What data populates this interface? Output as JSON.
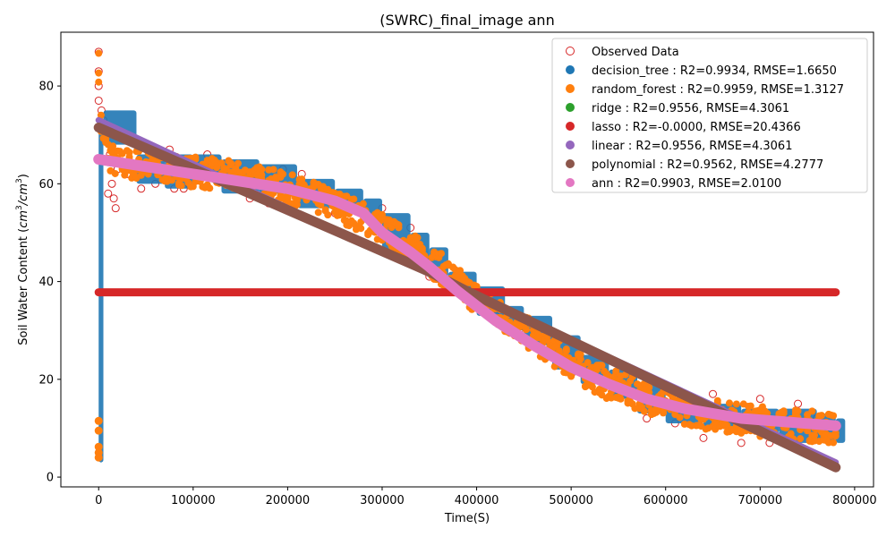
{
  "chart_data": {
    "type": "scatter",
    "title": "(SWRC)_final_image ann",
    "xlabel": "Time(S)",
    "ylabel_main": "Soil Water Content (",
    "ylabel_unit1": "cm",
    "ylabel_sup1": "3",
    "ylabel_slash": "/",
    "ylabel_unit2": "cm",
    "ylabel_sup2": "3",
    "ylabel_close": ")",
    "xlim": [
      -40000,
      820000
    ],
    "ylim": [
      -2,
      91
    ],
    "x_ticks": [
      0,
      100000,
      200000,
      300000,
      400000,
      500000,
      600000,
      700000,
      800000
    ],
    "x_tick_labels": [
      "0",
      "100000",
      "200000",
      "300000",
      "400000",
      "500000",
      "600000",
      "700000",
      "800000"
    ],
    "y_ticks": [
      0,
      20,
      40,
      60,
      80
    ],
    "y_tick_labels": [
      "0",
      "20",
      "40",
      "60",
      "80"
    ],
    "grid": false,
    "legend_position": "top-right",
    "observed": {
      "name": "Observed Data",
      "color": "#d62728",
      "marker": "hollow-circle",
      "points": [
        [
          0,
          87
        ],
        [
          0,
          83
        ],
        [
          0,
          80
        ],
        [
          0,
          77
        ],
        [
          3000,
          75
        ],
        [
          5000,
          73
        ],
        [
          8000,
          70
        ],
        [
          12000,
          66
        ],
        [
          14000,
          60
        ],
        [
          16000,
          57
        ],
        [
          18000,
          55
        ],
        [
          10000,
          58
        ],
        [
          20000,
          63
        ],
        [
          30000,
          62
        ],
        [
          45000,
          59
        ],
        [
          60000,
          60
        ],
        [
          75000,
          67
        ],
        [
          80000,
          59
        ],
        [
          90000,
          59
        ],
        [
          115000,
          66
        ],
        [
          140000,
          61
        ],
        [
          160000,
          57
        ],
        [
          180000,
          56
        ],
        [
          195000,
          63
        ],
        [
          215000,
          62
        ],
        [
          250000,
          54
        ],
        [
          300000,
          55
        ],
        [
          330000,
          51
        ],
        [
          350000,
          41
        ],
        [
          380000,
          38
        ],
        [
          420000,
          33
        ],
        [
          445000,
          30
        ],
        [
          480000,
          25
        ],
        [
          500000,
          21
        ],
        [
          520000,
          19
        ],
        [
          545000,
          17
        ],
        [
          580000,
          12
        ],
        [
          610000,
          11
        ],
        [
          640000,
          8
        ],
        [
          650000,
          17
        ],
        [
          680000,
          7
        ],
        [
          690000,
          13
        ],
        [
          700000,
          16
        ],
        [
          710000,
          7
        ],
        [
          740000,
          15
        ],
        [
          760000,
          12
        ],
        [
          775000,
          9
        ]
      ]
    },
    "series": [
      {
        "name": "decision_tree",
        "r2": "0.9934",
        "rmse": "1.6650",
        "color": "#1f77b4",
        "kind": "steps",
        "segments": [
          [
            0,
            3,
            73
          ],
          [
            5000,
            68,
            75
          ],
          [
            40000,
            60,
            66
          ],
          [
            70000,
            59,
            66
          ],
          [
            100000,
            61,
            66
          ],
          [
            130000,
            58,
            65
          ],
          [
            170000,
            58,
            64
          ],
          [
            210000,
            55,
            61
          ],
          [
            250000,
            54,
            59
          ],
          [
            280000,
            52,
            57
          ],
          [
            300000,
            46,
            54
          ],
          [
            330000,
            43,
            50
          ],
          [
            350000,
            41,
            47
          ],
          [
            370000,
            37,
            42
          ],
          [
            400000,
            33,
            39
          ],
          [
            430000,
            30,
            35
          ],
          [
            450000,
            27,
            33
          ],
          [
            480000,
            22,
            29
          ],
          [
            510000,
            19,
            25
          ],
          [
            540000,
            16,
            22
          ],
          [
            570000,
            13,
            19
          ],
          [
            600000,
            11,
            15
          ],
          [
            640000,
            10,
            15
          ],
          [
            680000,
            9,
            14
          ],
          [
            720000,
            7,
            14
          ],
          [
            760000,
            7,
            13
          ],
          [
            780000,
            7,
            12
          ]
        ]
      },
      {
        "name": "random_forest",
        "r2": "0.9959",
        "rmse": "1.3127",
        "color": "#ff7f0e",
        "kind": "band",
        "points": [
          [
            0,
            84
          ],
          [
            0,
            63
          ],
          [
            2000,
            73
          ],
          [
            10000,
            66
          ],
          [
            20000,
            64
          ],
          [
            40000,
            64
          ],
          [
            80000,
            63
          ],
          [
            120000,
            62
          ],
          [
            160000,
            61
          ],
          [
            200000,
            59
          ],
          [
            230000,
            57
          ],
          [
            260000,
            55
          ],
          [
            280000,
            53
          ],
          [
            300000,
            51
          ],
          [
            330000,
            47
          ],
          [
            360000,
            43
          ],
          [
            390000,
            38
          ],
          [
            420000,
            34
          ],
          [
            450000,
            30
          ],
          [
            480000,
            26
          ],
          [
            510000,
            22
          ],
          [
            540000,
            19
          ],
          [
            570000,
            17
          ],
          [
            600000,
            15
          ],
          [
            640000,
            13
          ],
          [
            680000,
            12
          ],
          [
            720000,
            11
          ],
          [
            780000,
            10
          ]
        ],
        "band": 3.2,
        "outliers": [
          [
            0,
            11.5
          ],
          [
            0,
            9.5
          ],
          [
            0,
            6.2
          ],
          [
            0,
            5
          ],
          [
            0,
            4
          ]
        ]
      },
      {
        "name": "ridge",
        "r2": "0.9556",
        "rmse": "4.3061",
        "color": "#2ca02c",
        "kind": "line",
        "points": [
          [
            0,
            73
          ],
          [
            780000,
            3
          ]
        ]
      },
      {
        "name": "lasso",
        "r2": "-0.0000",
        "rmse": "20.4366",
        "color": "#d62728",
        "kind": "line",
        "points": [
          [
            0,
            37.8
          ],
          [
            780000,
            37.8
          ]
        ]
      },
      {
        "name": "linear",
        "r2": "0.9556",
        "rmse": "4.3061",
        "color": "#9467bd",
        "kind": "line",
        "points": [
          [
            0,
            73
          ],
          [
            780000,
            3
          ]
        ]
      },
      {
        "name": "polynomial",
        "r2": "0.9562",
        "rmse": "4.2777",
        "color": "#8c564b",
        "kind": "line",
        "points": [
          [
            0,
            71.5
          ],
          [
            350000,
            42
          ],
          [
            390000,
            38
          ],
          [
            780000,
            2
          ]
        ]
      },
      {
        "name": "ann",
        "r2": "0.9903",
        "rmse": "2.0100",
        "color": "#e377c2",
        "kind": "line",
        "points": [
          [
            0,
            65
          ],
          [
            100000,
            62
          ],
          [
            200000,
            59
          ],
          [
            250000,
            56.5
          ],
          [
            280000,
            54
          ],
          [
            300000,
            50
          ],
          [
            330000,
            46
          ],
          [
            350000,
            43
          ],
          [
            380000,
            38
          ],
          [
            420000,
            32
          ],
          [
            460000,
            27
          ],
          [
            500000,
            22.5
          ],
          [
            540000,
            19
          ],
          [
            580000,
            16
          ],
          [
            620000,
            14
          ],
          [
            680000,
            12
          ],
          [
            780000,
            10.5
          ]
        ]
      }
    ]
  },
  "legend_labels": [
    "Observed Data",
    "decision_tree : R2=0.9934, RMSE=1.6650",
    "random_forest : R2=0.9959, RMSE=1.3127",
    "ridge : R2=0.9556, RMSE=4.3061",
    "lasso : R2=-0.0000, RMSE=20.4366",
    "linear : R2=0.9556, RMSE=4.3061",
    "polynomial : R2=0.9562, RMSE=4.2777",
    "ann : R2=0.9903, RMSE=2.0100"
  ]
}
